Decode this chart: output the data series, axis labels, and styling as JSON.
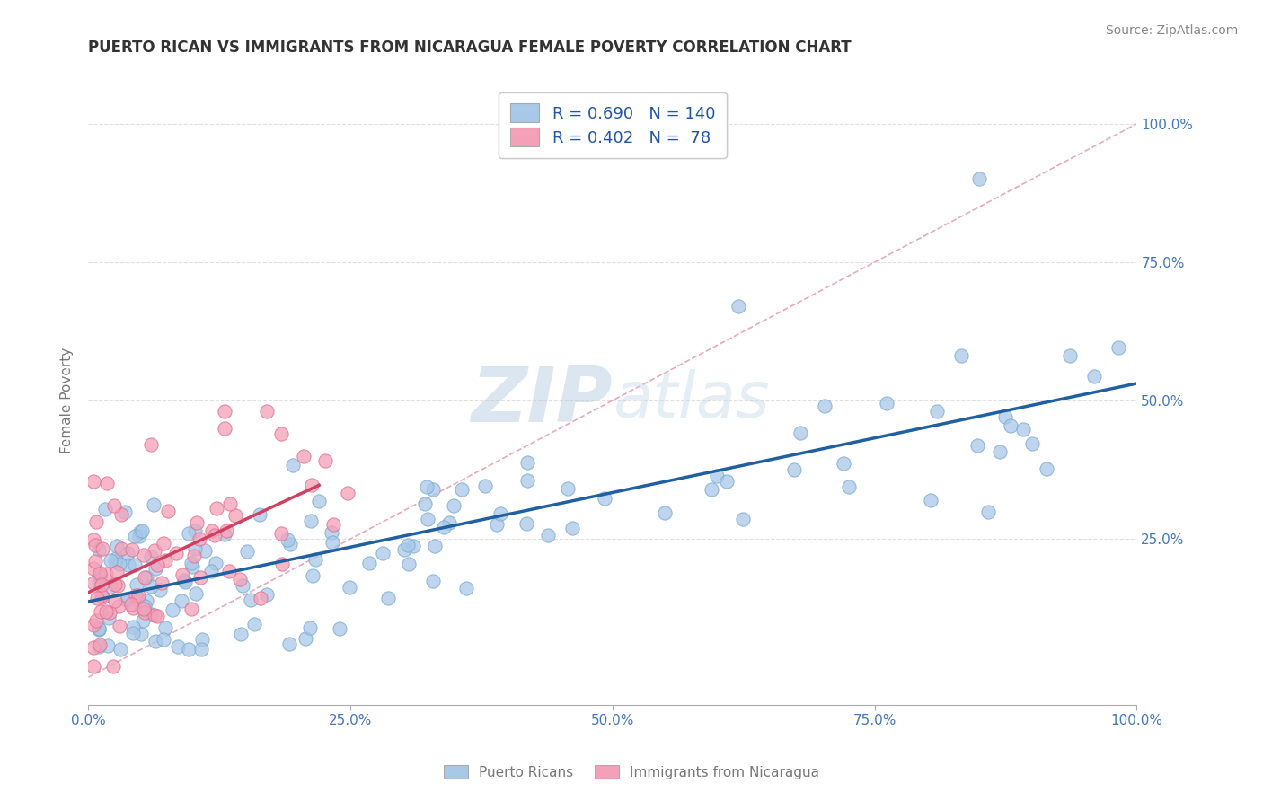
{
  "title": "PUERTO RICAN VS IMMIGRANTS FROM NICARAGUA FEMALE POVERTY CORRELATION CHART",
  "source": "Source: ZipAtlas.com",
  "ylabel": "Female Poverty",
  "blue_color": "#A8C8E8",
  "blue_edge_color": "#7AAAD0",
  "pink_color": "#F4A0B8",
  "pink_edge_color": "#E07090",
  "blue_line_color": "#2060A0",
  "pink_line_color": "#D04060",
  "diag_line_color": "#E8A0B0",
  "axis_label_color": "#4477BB",
  "legend_text_color": "#2255AA",
  "title_color": "#333333",
  "grid_color": "#DDDDDD",
  "watermark_zip_color": "#AABBDD",
  "watermark_atlas_color": "#BBCCDD",
  "background_color": "#FFFFFF",
  "R_blue": 0.69,
  "N_blue": 140,
  "R_pink": 0.402,
  "N_pink": 78,
  "xlim": [
    0.0,
    1.0
  ],
  "ylim": [
    -0.05,
    1.05
  ]
}
